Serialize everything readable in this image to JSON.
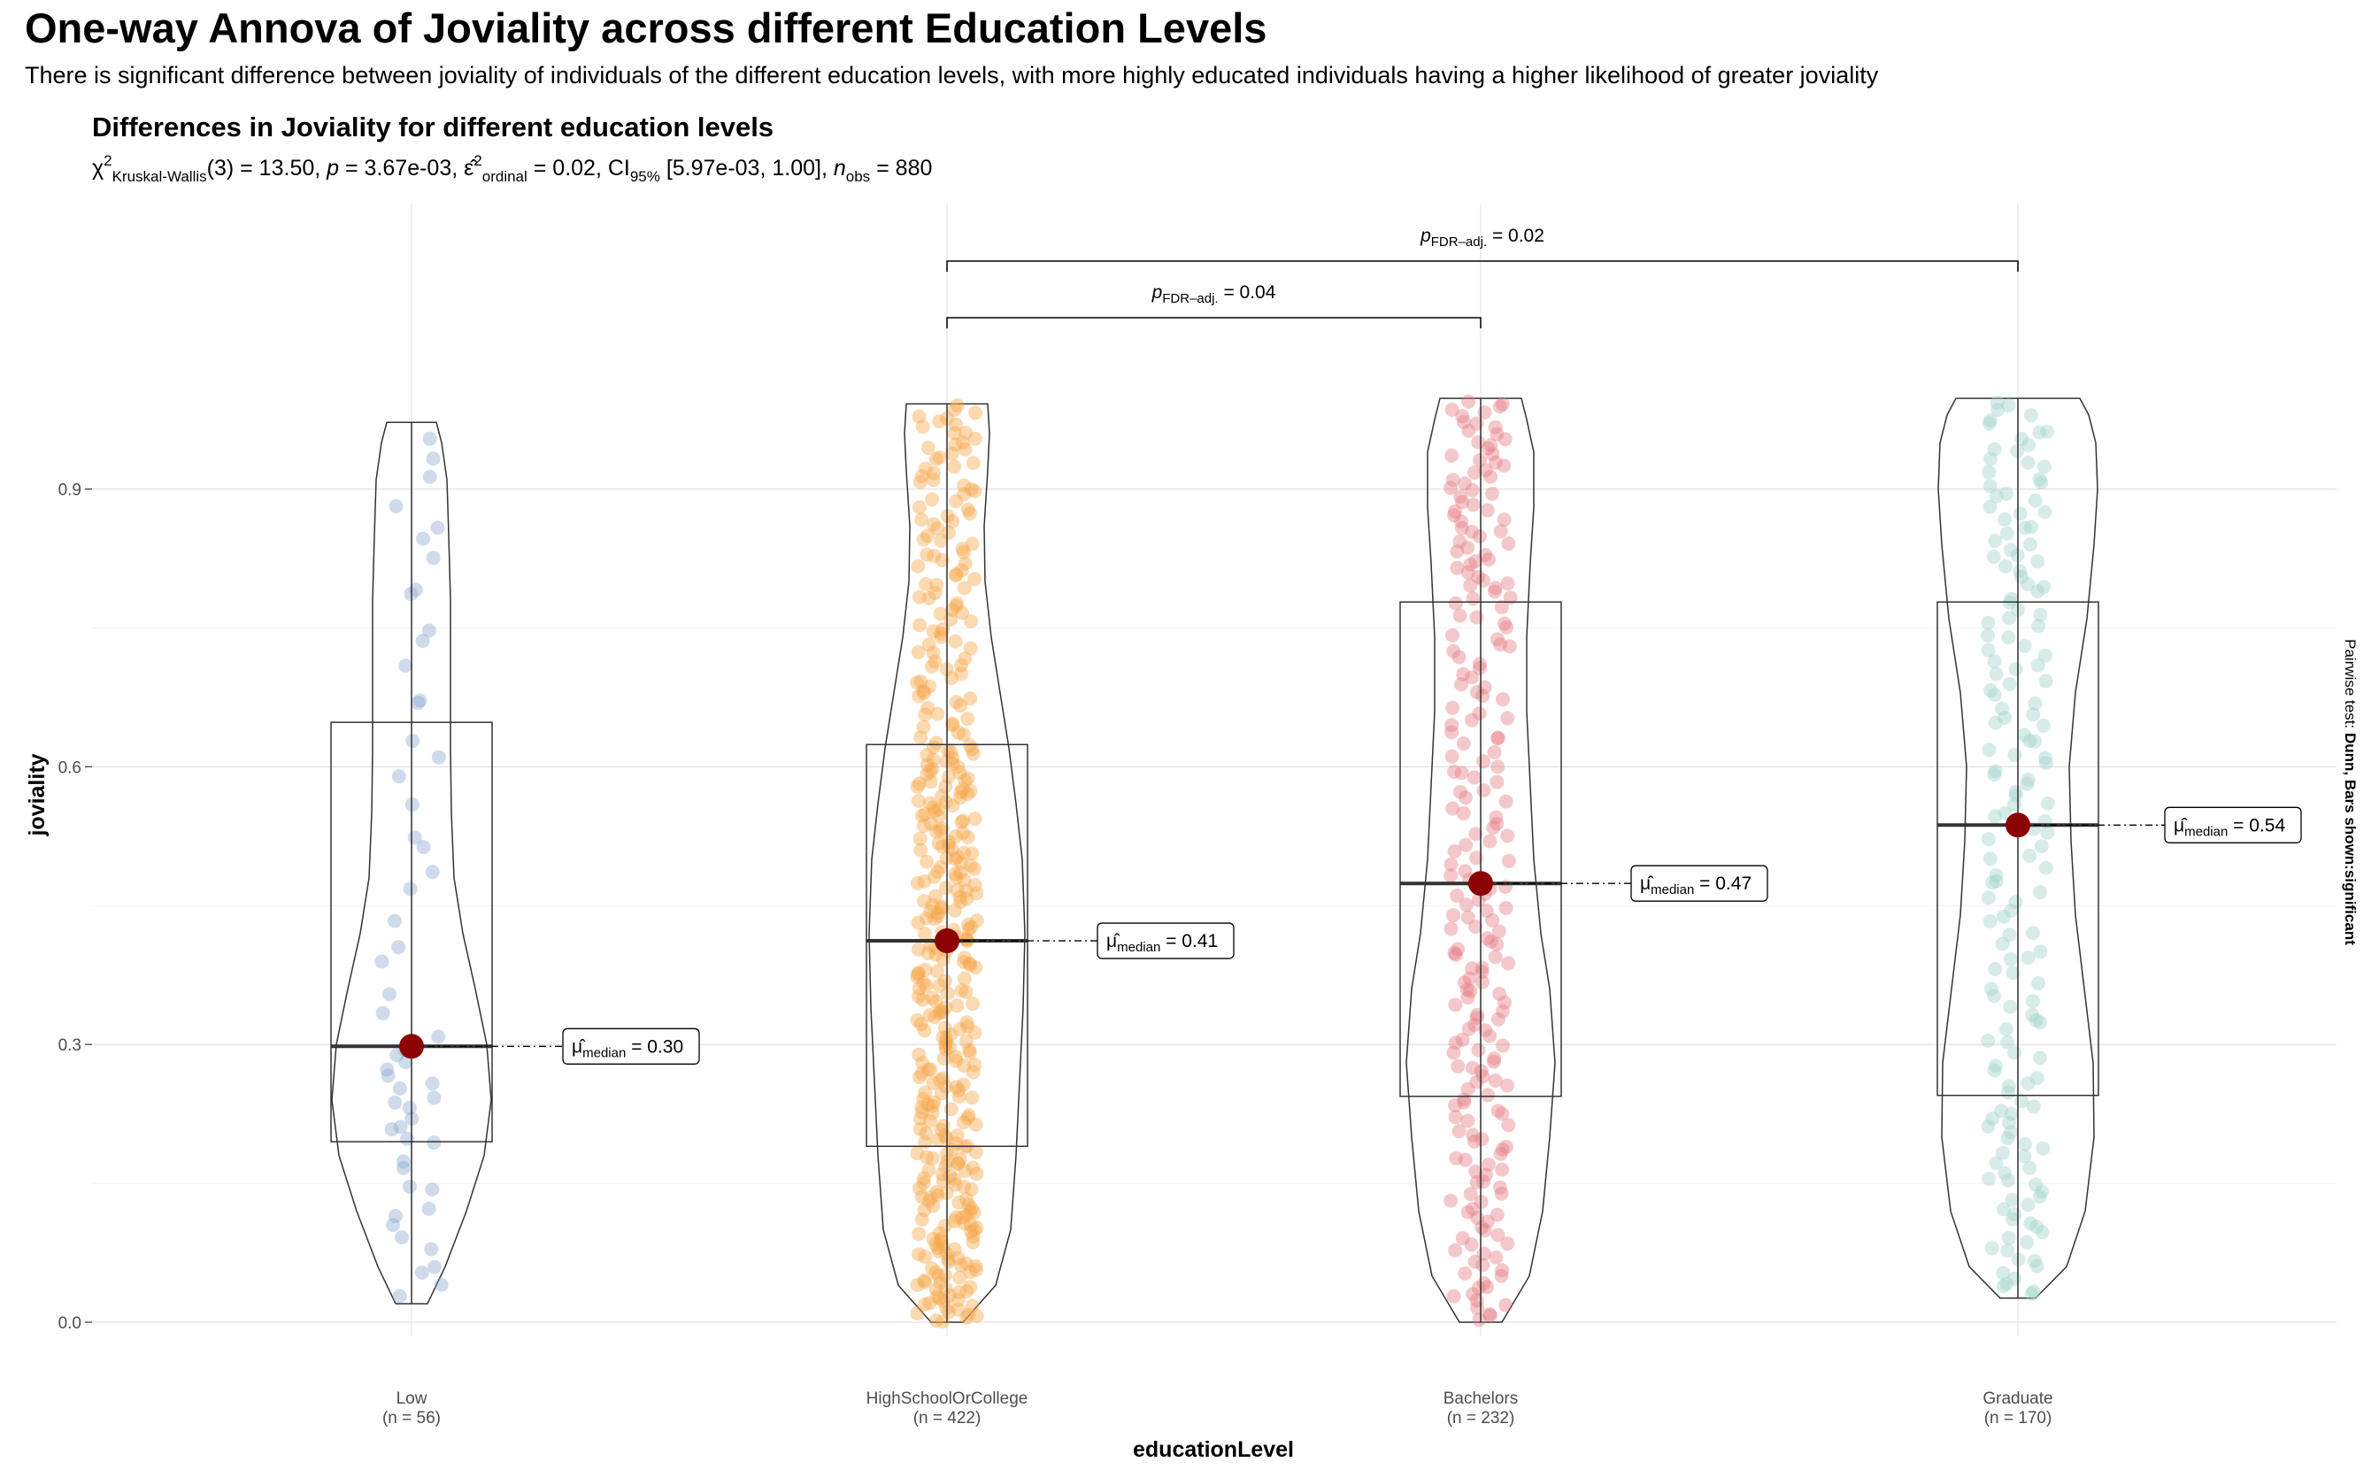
{
  "title": "One-way Annova of Joviality across different Education Levels",
  "subtitle": "There is significant difference between joviality of individuals of the different education levels, with more highly educated individuals having a higher likelihood of greater joviality",
  "plot_title": "Differences in Joviality for different education levels",
  "stats": {
    "chi": "χ",
    "chi_sup": "2",
    "test_sub": "Kruskal-Wallis",
    "df_value": "(3) = 13.50, ",
    "p_label": "p",
    "p_value": " = 3.67e-03, ",
    "eps": "ε̂",
    "eps_sup": "2",
    "eps_sub": "ordinal",
    "eps_value": " = 0.02, CI",
    "ci_sub": "95%",
    "ci_value": " [5.97e-03, 1.00], ",
    "n_label": "n",
    "n_sub": "obs",
    "n_value": " = 880"
  },
  "pairwise_caption_prefix": "Pairwise test: ",
  "pairwise_caption_bold": "Dunn, Bars shown:significant",
  "chart_data": {
    "type": "violin-box-scatter",
    "xlabel": "educationLevel",
    "ylabel": "joviality",
    "ylim": [
      0.0,
      1.0
    ],
    "yticks": [
      "0.0",
      "0.3",
      "0.6",
      "0.9"
    ],
    "grid": true,
    "groups": [
      {
        "name": "Low",
        "n_label": "(n = 56)",
        "color": "#8da9cf",
        "q1": 0.195,
        "median": 0.298,
        "q3": 0.648,
        "min": 0.02,
        "max": 0.972,
        "median_label": "0.30"
      },
      {
        "name": "HighSchoolOrCollege",
        "n_label": "(n = 422)",
        "color": "#f5a445",
        "q1": 0.19,
        "median": 0.412,
        "q3": 0.624,
        "min": 0.0,
        "max": 0.992,
        "median_label": "0.41"
      },
      {
        "name": "Bachelors",
        "n_label": "(n = 232)",
        "color": "#e57b82",
        "q1": 0.244,
        "median": 0.474,
        "q3": 0.778,
        "min": 0.0,
        "max": 0.998,
        "median_label": "0.47"
      },
      {
        "name": "Graduate",
        "n_label": "(n = 170)",
        "color": "#9fd2c8",
        "q1": 0.245,
        "median": 0.537,
        "q3": 0.778,
        "min": 0.026,
        "max": 0.998,
        "median_label": "0.54"
      }
    ],
    "median_symbol": "μ̂",
    "median_sub": "median",
    "comparisons": [
      {
        "from": "HighSchoolOrCollege",
        "to": "Bachelors",
        "label_sub": "FDR–adj.",
        "p": "0.04"
      },
      {
        "from": "HighSchoolOrCollege",
        "to": "Graduate",
        "label_sub": "FDR–adj.",
        "p": "0.02"
      }
    ]
  }
}
